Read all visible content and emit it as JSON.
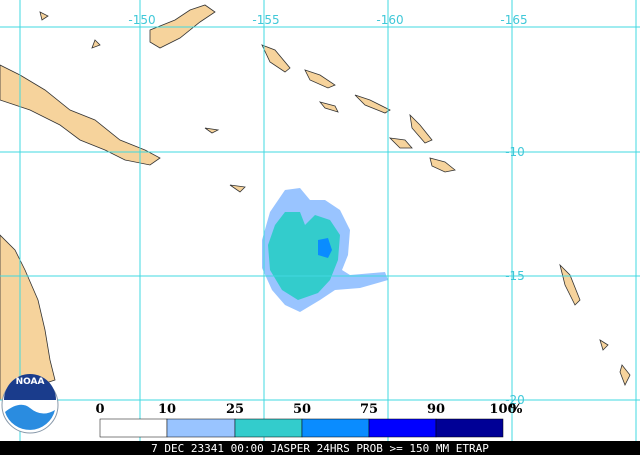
{
  "map": {
    "lon_labels": [
      "-150",
      "-155",
      "-160",
      "-165"
    ],
    "lat_labels": [
      "-10",
      "-15",
      "-20"
    ],
    "logo": "NOAA",
    "legend": {
      "ticks": [
        "0",
        "10",
        "25",
        "50",
        "75",
        "90",
        "100"
      ],
      "unit": "%",
      "colors": [
        "#ffffff",
        "#99c4ff",
        "#33cccc",
        "#0a8cff",
        "#0000ff",
        "#000096"
      ]
    },
    "caption": "7 DEC 23341 00:00 JASPER 24HRS PROB >= 150 MM ETRAP"
  }
}
